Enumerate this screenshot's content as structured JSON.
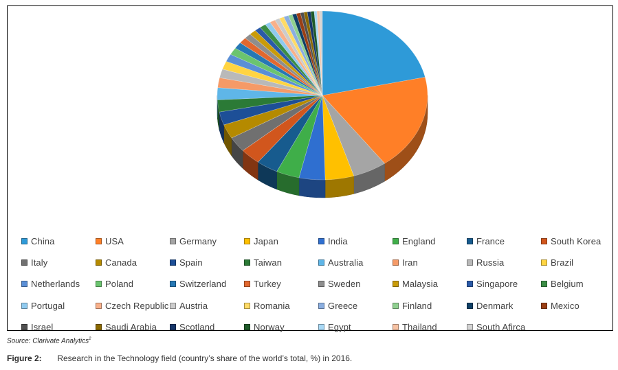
{
  "chart_data": {
    "type": "pie",
    "title": "",
    "legend_position": "bottom",
    "categories": [
      "China",
      "USA",
      "Germany",
      "Japan",
      "India",
      "England",
      "France",
      "South Korea",
      "Italy",
      "Canada",
      "Spain",
      "Taiwan",
      "Australia",
      "Iran",
      "Russia",
      "Brazil",
      "Netherlands",
      "Poland",
      "Switzerland",
      "Turkey",
      "Sweden",
      "Malaysia",
      "Singapore",
      "Belgium",
      "Portugal",
      "Czech Republic",
      "Austria",
      "Romania",
      "Greece",
      "Finland",
      "Denmark",
      "Mexico",
      "Israel",
      "Saudi Arabia",
      "Scotland",
      "Norway",
      "Egypt",
      "Thailand",
      "South Afirca"
    ],
    "values": [
      20.5,
      17.5,
      5.0,
      4.2,
      3.8,
      3.4,
      3.2,
      3.0,
      2.8,
      2.6,
      2.4,
      2.2,
      2.2,
      1.8,
      1.6,
      1.5,
      1.4,
      1.3,
      1.2,
      1.1,
      1.0,
      1.0,
      0.9,
      0.9,
      0.8,
      0.8,
      0.7,
      0.7,
      0.7,
      0.6,
      0.6,
      0.6,
      0.5,
      0.5,
      0.5,
      0.5,
      0.4,
      0.4,
      0.4
    ],
    "colors": [
      "#2e9ad8",
      "#ff7f27",
      "#a5a5a5",
      "#ffc000",
      "#2f6fd0",
      "#3fae49",
      "#175b8e",
      "#d1561d",
      "#707070",
      "#b58a00",
      "#1d4f97",
      "#2b7a36",
      "#5fb6e8",
      "#f59a67",
      "#b9b9b9",
      "#ffd442",
      "#5a8fd6",
      "#6bc46f",
      "#2678b5",
      "#e2682f",
      "#8e8e8e",
      "#c99b0a",
      "#2a5aa8",
      "#3b8d45",
      "#8fcaef",
      "#f8b08a",
      "#cccccc",
      "#ffdb66",
      "#8aaee0",
      "#8fd08f",
      "#0f3f66",
      "#9a3f14",
      "#505050",
      "#8a6800",
      "#16366a",
      "#1f5a29",
      "#a8d8f5",
      "#f7c2a3",
      "#d4d4d4"
    ]
  },
  "source": {
    "text": "Source: Clarivate Analytics",
    "superscript": "2"
  },
  "caption": {
    "label": "Figure 2:",
    "text": "Research in the Technology field (country’s share of the world’s total, %) in 2016."
  }
}
